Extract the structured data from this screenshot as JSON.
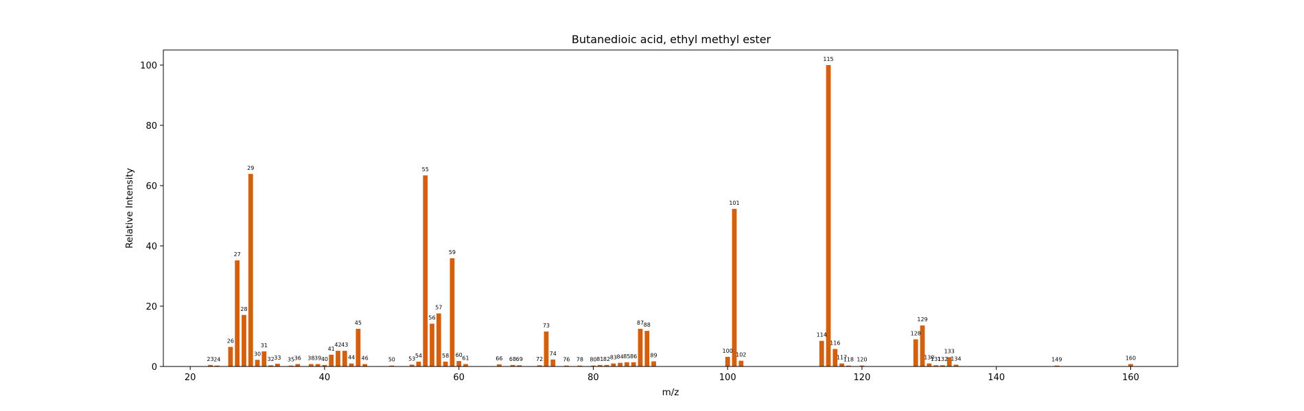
{
  "chart_data": {
    "type": "bar",
    "title": "Butanedioic acid, ethyl methyl ester",
    "xlabel": "m/z",
    "ylabel": "Relative Intensity",
    "xlim": [
      16,
      167
    ],
    "ylim": [
      0,
      105
    ],
    "xticks": [
      20,
      40,
      60,
      80,
      100,
      120,
      140,
      160
    ],
    "yticks": [
      0,
      20,
      40,
      60,
      80,
      100
    ],
    "grid": false,
    "bar_color": "#d2600f",
    "x": [
      23,
      24,
      26,
      27,
      28,
      29,
      30,
      31,
      32,
      33,
      35,
      36,
      38,
      39,
      40,
      41,
      42,
      43,
      44,
      45,
      46,
      50,
      53,
      54,
      55,
      56,
      57,
      58,
      59,
      60,
      61,
      66,
      68,
      69,
      72,
      73,
      74,
      76,
      78,
      80,
      81,
      82,
      83,
      84,
      85,
      86,
      87,
      88,
      89,
      100,
      101,
      102,
      114,
      115,
      116,
      117,
      118,
      120,
      128,
      129,
      130,
      131,
      132,
      133,
      134,
      149,
      160
    ],
    "values": [
      0.5,
      0.3,
      6.5,
      35.2,
      17.1,
      63.9,
      2.2,
      5.0,
      0.4,
      0.9,
      0.3,
      0.8,
      0.8,
      0.8,
      0.5,
      3.9,
      5.2,
      5.2,
      1.0,
      12.5,
      0.8,
      0.3,
      0.6,
      1.6,
      63.4,
      14.2,
      17.6,
      1.6,
      35.9,
      1.8,
      0.8,
      0.7,
      0.5,
      0.4,
      0.4,
      11.6,
      2.3,
      0.3,
      0.3,
      0.3,
      0.5,
      0.5,
      1.0,
      1.2,
      1.4,
      1.4,
      12.5,
      11.8,
      1.7,
      3.2,
      52.3,
      1.9,
      8.5,
      100,
      5.8,
      1.0,
      0.3,
      0.3,
      9.0,
      13.6,
      1.0,
      0.4,
      0.4,
      3.1,
      0.6,
      0.3,
      0.8
    ],
    "labels": [
      "23",
      "24",
      "26",
      "27",
      "28",
      "29",
      "30",
      "31",
      "32",
      "33",
      "35",
      "36",
      "38",
      "39",
      "40",
      "41",
      "42",
      "43",
      "44",
      "45",
      "46",
      "50",
      "53",
      "54",
      "55",
      "56",
      "57",
      "58",
      "59",
      "60",
      "61",
      "66",
      "68",
      "69",
      "72",
      "73",
      "74",
      "76",
      "78",
      "80",
      "81",
      "82",
      "83",
      "84",
      "85",
      "86",
      "87",
      "88",
      "89",
      "100",
      "101",
      "102",
      "114",
      "115",
      "116",
      "117",
      "118",
      "120",
      "128",
      "129",
      "130",
      "131",
      "132",
      "133",
      "134",
      "149",
      "160"
    ]
  }
}
